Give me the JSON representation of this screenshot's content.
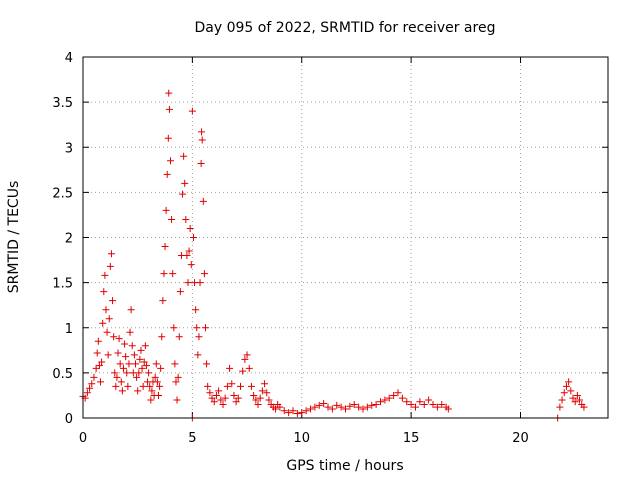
{
  "chart_data": {
    "type": "scatter",
    "title": "Day 095 of 2022, SRMTID for receiver areg",
    "xlabel": "GPS time / hours",
    "ylabel": "SRMTID / TECUs",
    "xlim": [
      0,
      24
    ],
    "ylim": [
      0,
      4
    ],
    "xticks": [
      0,
      5,
      10,
      15,
      20
    ],
    "xtick_labels": [
      "0",
      "5",
      "10",
      "15",
      "20"
    ],
    "yticks": [
      0,
      0.5,
      1,
      1.5,
      2,
      2.5,
      3,
      3.5,
      4
    ],
    "ytick_labels": [
      "0",
      "0.5",
      "1",
      "1.5",
      "2",
      "2.5",
      "3",
      "3.5",
      "4"
    ],
    "grid": true,
    "marker": "+",
    "series": [
      {
        "name": "SRMTID",
        "color": "#e00000",
        "points": [
          [
            0.0,
            0.24
          ],
          [
            0.1,
            0.22
          ],
          [
            0.2,
            0.28
          ],
          [
            0.3,
            0.33
          ],
          [
            0.4,
            0.38
          ],
          [
            0.5,
            0.45
          ],
          [
            0.6,
            0.55
          ],
          [
            0.65,
            0.72
          ],
          [
            0.7,
            0.85
          ],
          [
            0.75,
            0.58
          ],
          [
            0.8,
            0.4
          ],
          [
            0.85,
            0.62
          ],
          [
            0.9,
            1.05
          ],
          [
            0.95,
            1.4
          ],
          [
            1.0,
            1.58
          ],
          [
            1.05,
            1.2
          ],
          [
            1.1,
            0.95
          ],
          [
            1.15,
            0.7
          ],
          [
            1.2,
            1.1
          ],
          [
            1.25,
            1.68
          ],
          [
            1.3,
            1.82
          ],
          [
            1.35,
            1.3
          ],
          [
            1.4,
            0.9
          ],
          [
            1.45,
            0.5
          ],
          [
            1.5,
            0.35
          ],
          [
            1.55,
            0.45
          ],
          [
            1.6,
            0.72
          ],
          [
            1.65,
            0.88
          ],
          [
            1.7,
            0.6
          ],
          [
            1.75,
            0.4
          ],
          [
            1.8,
            0.3
          ],
          [
            1.85,
            0.55
          ],
          [
            1.9,
            0.82
          ],
          [
            1.95,
            0.68
          ],
          [
            2.0,
            0.5
          ],
          [
            2.05,
            0.35
          ],
          [
            2.1,
            0.6
          ],
          [
            2.15,
            0.95
          ],
          [
            2.2,
            1.2
          ],
          [
            2.25,
            0.8
          ],
          [
            2.3,
            0.5
          ],
          [
            2.35,
            0.7
          ],
          [
            2.4,
            0.6
          ],
          [
            2.45,
            0.45
          ],
          [
            2.5,
            0.3
          ],
          [
            2.55,
            0.5
          ],
          [
            2.6,
            0.65
          ],
          [
            2.65,
            0.75
          ],
          [
            2.7,
            0.55
          ],
          [
            2.75,
            0.35
          ],
          [
            2.8,
            0.62
          ],
          [
            2.85,
            0.8
          ],
          [
            2.9,
            0.58
          ],
          [
            2.95,
            0.4
          ],
          [
            3.0,
            0.5
          ],
          [
            3.05,
            0.35
          ],
          [
            3.1,
            0.2
          ],
          [
            3.15,
            0.3
          ],
          [
            3.2,
            0.4
          ],
          [
            3.25,
            0.25
          ],
          [
            3.3,
            0.45
          ],
          [
            3.35,
            0.6
          ],
          [
            3.4,
            0.4
          ],
          [
            3.45,
            0.25
          ],
          [
            3.5,
            0.35
          ],
          [
            3.55,
            0.55
          ],
          [
            3.6,
            0.9
          ],
          [
            3.65,
            1.3
          ],
          [
            3.7,
            1.6
          ],
          [
            3.75,
            1.9
          ],
          [
            3.8,
            2.3
          ],
          [
            3.85,
            2.7
          ],
          [
            3.9,
            3.1
          ],
          [
            3.92,
            3.6
          ],
          [
            3.95,
            3.42
          ],
          [
            4.0,
            2.85
          ],
          [
            4.05,
            2.2
          ],
          [
            4.1,
            1.6
          ],
          [
            4.15,
            1.0
          ],
          [
            4.2,
            0.6
          ],
          [
            4.25,
            0.4
          ],
          [
            4.3,
            0.2
          ],
          [
            4.35,
            0.45
          ],
          [
            4.4,
            0.9
          ],
          [
            4.45,
            1.4
          ],
          [
            4.5,
            1.8
          ],
          [
            4.55,
            2.48
          ],
          [
            4.6,
            2.9
          ],
          [
            4.65,
            2.6
          ],
          [
            4.7,
            2.2
          ],
          [
            4.75,
            1.8
          ],
          [
            4.8,
            1.5
          ],
          [
            4.85,
            1.85
          ],
          [
            4.9,
            2.1
          ],
          [
            4.95,
            1.7
          ],
          [
            5.0,
            3.4
          ],
          [
            5.05,
            2.0
          ],
          [
            5.1,
            1.5
          ],
          [
            5.15,
            1.2
          ],
          [
            5.2,
            1.0
          ],
          [
            5.25,
            0.7
          ],
          [
            5.3,
            0.9
          ],
          [
            5.35,
            1.5
          ],
          [
            5.4,
            2.82
          ],
          [
            5.42,
            3.17
          ],
          [
            5.45,
            3.08
          ],
          [
            5.5,
            2.4
          ],
          [
            5.55,
            1.6
          ],
          [
            5.6,
            1.0
          ],
          [
            5.65,
            0.6
          ],
          [
            5.7,
            0.35
          ],
          [
            5.8,
            0.28
          ],
          [
            5.9,
            0.22
          ],
          [
            6.0,
            0.18
          ],
          [
            6.1,
            0.25
          ],
          [
            6.2,
            0.3
          ],
          [
            6.3,
            0.2
          ],
          [
            6.4,
            0.15
          ],
          [
            6.5,
            0.22
          ],
          [
            6.6,
            0.35
          ],
          [
            6.7,
            0.55
          ],
          [
            6.8,
            0.38
          ],
          [
            6.9,
            0.25
          ],
          [
            7.0,
            0.18
          ],
          [
            7.1,
            0.22
          ],
          [
            7.2,
            0.35
          ],
          [
            7.3,
            0.52
          ],
          [
            7.4,
            0.65
          ],
          [
            7.5,
            0.7
          ],
          [
            7.6,
            0.55
          ],
          [
            7.7,
            0.35
          ],
          [
            7.8,
            0.25
          ],
          [
            7.9,
            0.2
          ],
          [
            8.0,
            0.15
          ],
          [
            8.1,
            0.22
          ],
          [
            8.2,
            0.3
          ],
          [
            8.3,
            0.38
          ],
          [
            8.4,
            0.28
          ],
          [
            8.5,
            0.2
          ],
          [
            8.6,
            0.15
          ],
          [
            8.7,
            0.12
          ],
          [
            8.8,
            0.1
          ],
          [
            8.9,
            0.15
          ],
          [
            9.0,
            0.12
          ],
          [
            9.2,
            0.08
          ],
          [
            9.4,
            0.06
          ],
          [
            9.6,
            0.08
          ],
          [
            9.8,
            0.05
          ],
          [
            10.0,
            0.06
          ],
          [
            10.2,
            0.08
          ],
          [
            10.4,
            0.1
          ],
          [
            10.6,
            0.12
          ],
          [
            10.8,
            0.14
          ],
          [
            11.0,
            0.16
          ],
          [
            11.2,
            0.12
          ],
          [
            11.4,
            0.1
          ],
          [
            11.6,
            0.14
          ],
          [
            11.8,
            0.12
          ],
          [
            12.0,
            0.1
          ],
          [
            12.2,
            0.13
          ],
          [
            12.4,
            0.15
          ],
          [
            12.6,
            0.12
          ],
          [
            12.8,
            0.1
          ],
          [
            13.0,
            0.12
          ],
          [
            13.2,
            0.14
          ],
          [
            13.4,
            0.15
          ],
          [
            13.6,
            0.18
          ],
          [
            13.8,
            0.2
          ],
          [
            14.0,
            0.22
          ],
          [
            14.2,
            0.25
          ],
          [
            14.4,
            0.28
          ],
          [
            14.6,
            0.22
          ],
          [
            14.8,
            0.18
          ],
          [
            15.0,
            0.15
          ],
          [
            15.2,
            0.12
          ],
          [
            15.4,
            0.18
          ],
          [
            15.6,
            0.15
          ],
          [
            15.8,
            0.2
          ],
          [
            16.0,
            0.15
          ],
          [
            16.2,
            0.12
          ],
          [
            16.4,
            0.15
          ],
          [
            16.6,
            0.12
          ],
          [
            16.7,
            0.1
          ],
          [
            5.0,
            0.0
          ],
          [
            21.7,
            0.0
          ],
          [
            21.8,
            0.12
          ],
          [
            21.9,
            0.2
          ],
          [
            22.0,
            0.28
          ],
          [
            22.1,
            0.35
          ],
          [
            22.2,
            0.4
          ],
          [
            22.3,
            0.3
          ],
          [
            22.4,
            0.22
          ],
          [
            22.5,
            0.18
          ],
          [
            22.6,
            0.25
          ],
          [
            22.7,
            0.2
          ],
          [
            22.8,
            0.15
          ],
          [
            22.9,
            0.12
          ]
        ]
      }
    ]
  }
}
